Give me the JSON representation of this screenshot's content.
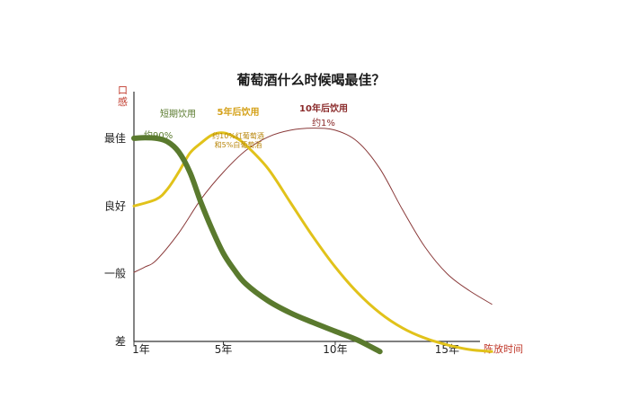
{
  "chart_data": {
    "type": "line",
    "title": "葡萄酒什么时候喝最佳？",
    "ylabel": "口感",
    "xlabel": "陈放时间",
    "y_levels": [
      "差",
      "一般",
      "良好",
      "最佳"
    ],
    "x_ticks": [
      {
        "label": "1年",
        "value": 1
      },
      {
        "label": "5年",
        "value": 5
      },
      {
        "label": "10年",
        "value": 10
      },
      {
        "label": "15年",
        "value": 15
      }
    ],
    "xlim": [
      1,
      18
    ],
    "ylim": [
      0,
      3.45
    ],
    "series": [
      {
        "name": "短期饮用",
        "note": "约90%",
        "color": "#5a7a2e",
        "x": [
          1,
          1.5,
          2.0,
          2.5,
          3.0,
          3.5,
          4.0,
          4.5,
          5.0,
          5.5,
          6.0,
          7.0,
          8.0,
          9.0,
          10.0,
          11.0,
          12.0
        ],
        "y": [
          3.0,
          3.01,
          3.0,
          2.95,
          2.8,
          2.5,
          2.05,
          1.65,
          1.3,
          1.05,
          0.85,
          0.6,
          0.42,
          0.28,
          0.15,
          0.02,
          -0.15
        ]
      },
      {
        "name": "5年后饮用",
        "note": "约10%红葡萄酒\n和5%白葡萄酒",
        "color": "#e1c21a",
        "x": [
          1,
          2.0,
          2.5,
          3.0,
          3.5,
          4.0,
          4.5,
          5.0,
          5.5,
          6.0,
          7.0,
          8.0,
          9.0,
          10.0,
          11.0,
          12.0,
          13.0,
          14.0,
          15.0,
          16.0,
          17.0
        ],
        "y": [
          2.0,
          2.1,
          2.25,
          2.5,
          2.78,
          2.93,
          3.05,
          3.08,
          3.02,
          2.9,
          2.55,
          2.05,
          1.55,
          1.1,
          0.72,
          0.42,
          0.2,
          0.05,
          -0.05,
          -0.12,
          -0.15
        ]
      },
      {
        "name": "10年后饮用",
        "note": "约1%",
        "color": "#8a3a3a",
        "x": [
          1,
          1.5,
          2.0,
          3.0,
          4.0,
          5.0,
          6.0,
          7.0,
          8.0,
          9.0,
          10.0,
          11.0,
          12.0,
          13.0,
          14.0,
          15.0,
          16.0,
          17.0
        ],
        "y": [
          1.02,
          1.1,
          1.2,
          1.6,
          2.1,
          2.5,
          2.82,
          3.02,
          3.12,
          3.15,
          3.12,
          2.95,
          2.55,
          1.95,
          1.4,
          1.0,
          0.75,
          0.55
        ]
      }
    ]
  }
}
